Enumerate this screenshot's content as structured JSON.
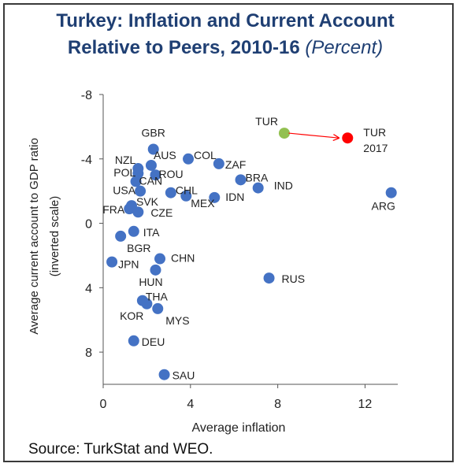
{
  "title_line1": "Turkey: Inflation and Current Account",
  "title_line2": "Relative to Peers, 2010-16",
  "title_unit": "(Percent)",
  "source": "Source: TurkStat and WEO.",
  "colors": {
    "title": "#1f3f73",
    "point": "#4472c4",
    "turkey": "#92c050",
    "turkey2017": "#ff0000",
    "arrow": "#ff0000"
  },
  "chart_data": {
    "type": "scatter",
    "xlabel": "Average inflation",
    "ylabel": "Average current account to GDP ratio",
    "ylabel2": "(inverted scale)",
    "xlim": [
      0,
      13.5
    ],
    "ylim": [
      -8,
      10
    ],
    "y_inverted": true,
    "xticks": [
      "0",
      "4",
      "8",
      "12"
    ],
    "xtick_values": [
      0,
      4,
      8,
      12
    ],
    "yticks": [
      "-8",
      "-4",
      "0",
      "4",
      "8"
    ],
    "ytick_values": [
      -8,
      -4,
      0,
      4,
      8
    ],
    "grid": false,
    "points": [
      {
        "label": "GBR",
        "x": 2.3,
        "y": -4.6
      },
      {
        "label": "NZL",
        "x": 1.6,
        "y": -3.4
      },
      {
        "label": "AUS",
        "x": 2.2,
        "y": -3.6
      },
      {
        "label": "POL",
        "x": 1.6,
        "y": -3.1
      },
      {
        "label": "ROU",
        "x": 2.4,
        "y": -3.0
      },
      {
        "label": "CAN",
        "x": 1.5,
        "y": -2.6
      },
      {
        "label": "COL",
        "x": 3.9,
        "y": -4.0
      },
      {
        "label": "ZAF",
        "x": 5.3,
        "y": -3.7
      },
      {
        "label": "BRA",
        "x": 6.3,
        "y": -2.7
      },
      {
        "label": "IND",
        "x": 7.1,
        "y": -2.2
      },
      {
        "label": "CHL",
        "x": 3.1,
        "y": -1.9
      },
      {
        "label": "USA",
        "x": 1.7,
        "y": -2.0
      },
      {
        "label": "MEX",
        "x": 3.8,
        "y": -1.7
      },
      {
        "label": "IDN",
        "x": 5.1,
        "y": -1.6
      },
      {
        "label": "SVK",
        "x": 1.3,
        "y": -1.1
      },
      {
        "label": "FRA",
        "x": 1.2,
        "y": -0.9
      },
      {
        "label": "CZE",
        "x": 1.6,
        "y": -0.7
      },
      {
        "label": "ARG",
        "x": 13.2,
        "y": -1.9
      },
      {
        "label": "ITA",
        "x": 1.4,
        "y": 0.5
      },
      {
        "label": "BGR",
        "x": 0.8,
        "y": 0.8
      },
      {
        "label": "JPN",
        "x": 0.4,
        "y": 2.4
      },
      {
        "label": "CHN",
        "x": 2.6,
        "y": 2.2
      },
      {
        "label": "HUN",
        "x": 2.4,
        "y": 2.9
      },
      {
        "label": "RUS",
        "x": 7.6,
        "y": 3.4
      },
      {
        "label": "THA",
        "x": 1.8,
        "y": 4.8
      },
      {
        "label": "KOR",
        "x": 2.0,
        "y": 5.0
      },
      {
        "label": "MYS",
        "x": 2.5,
        "y": 5.3
      },
      {
        "label": "DEU",
        "x": 1.4,
        "y": 7.3
      },
      {
        "label": "SAU",
        "x": 2.8,
        "y": 9.4
      },
      {
        "label": "TUR",
        "x": 8.3,
        "y": -5.6,
        "highlight": "turkey"
      },
      {
        "label": "TUR",
        "label2": "2017",
        "x": 11.2,
        "y": -5.3,
        "highlight": "turkey2017"
      }
    ],
    "arrow": {
      "from": [
        8.5,
        -5.6
      ],
      "to": [
        10.8,
        -5.3
      ]
    }
  }
}
